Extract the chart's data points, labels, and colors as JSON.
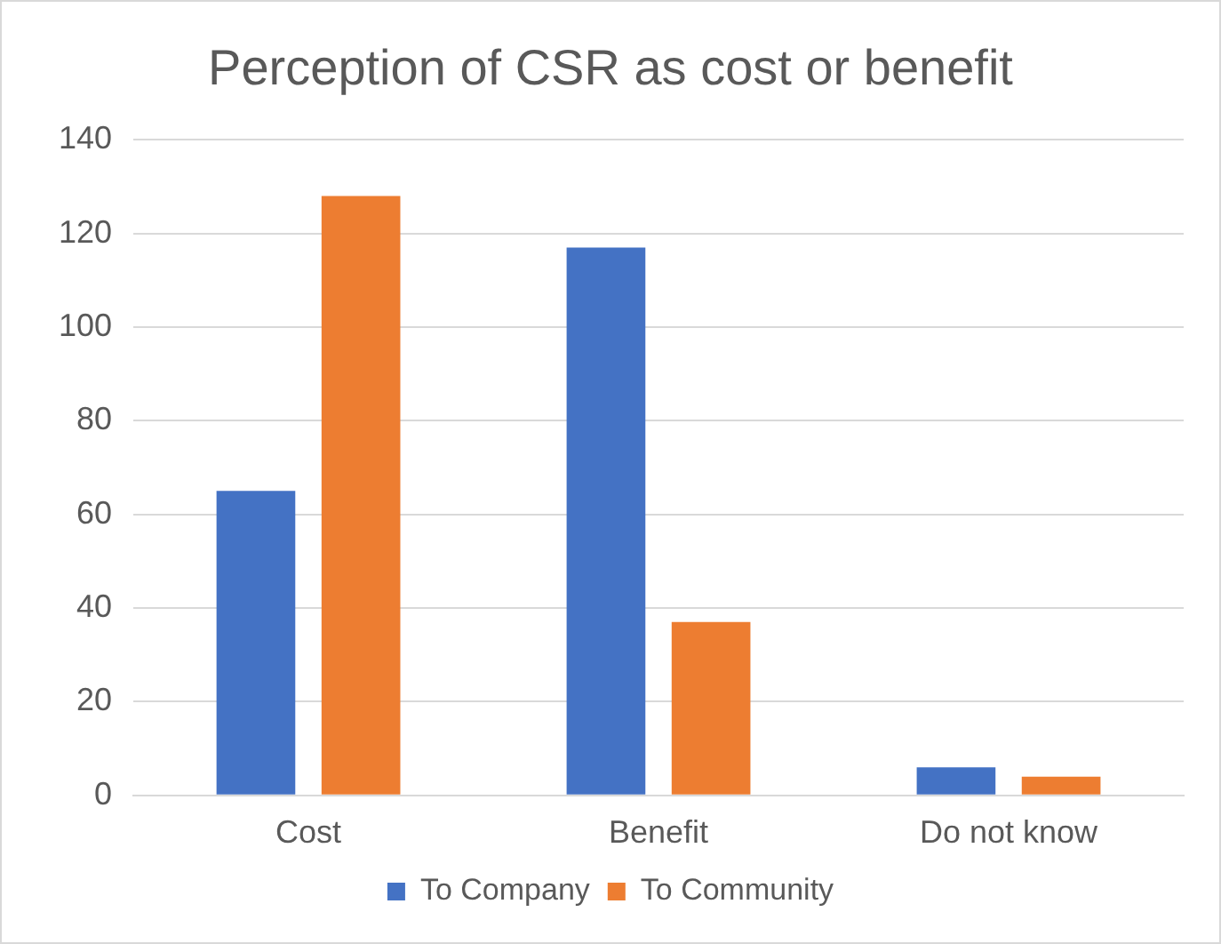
{
  "chart_data": {
    "type": "bar",
    "title": "Perception of CSR as cost or benefit",
    "categories": [
      "Cost",
      "Benefit",
      "Do not know"
    ],
    "series": [
      {
        "name": "To Company",
        "color": "#4472c4",
        "values": [
          65,
          117,
          6
        ]
      },
      {
        "name": "To Community",
        "color": "#ed7d31",
        "values": [
          128,
          37,
          4
        ]
      }
    ],
    "ylim": [
      0,
      140
    ],
    "yticks": [
      0,
      20,
      40,
      60,
      80,
      100,
      120,
      140
    ],
    "grid": "y",
    "legend": "bottom"
  }
}
